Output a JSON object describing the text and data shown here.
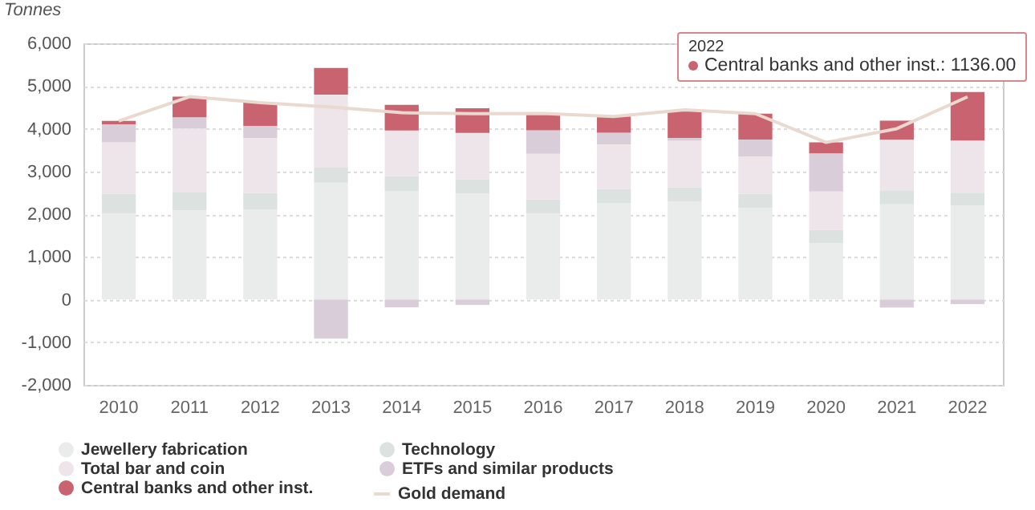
{
  "chart_data": {
    "type": "bar",
    "stacked": true,
    "ylabel": "Tonnes",
    "categories": [
      "2010",
      "2011",
      "2012",
      "2013",
      "2014",
      "2015",
      "2016",
      "2017",
      "2018",
      "2019",
      "2020",
      "2021",
      "2022"
    ],
    "series": [
      {
        "name": "Jewellery fabrication",
        "color": "#e9eceb",
        "values": [
          2017,
          2091,
          2112,
          2735,
          2544,
          2479,
          2019,
          2257,
          2290,
          2152,
          1324,
          2230,
          2195
        ]
      },
      {
        "name": "Technology",
        "color": "#dbe2df",
        "values": [
          461,
          429,
          382,
          356,
          349,
          332,
          323,
          333,
          335,
          326,
          303,
          330,
          309
        ]
      },
      {
        "name": "Total bar and coin",
        "color": "#eee5eb",
        "values": [
          1203,
          1487,
          1289,
          1706,
          1065,
          1090,
          1073,
          1045,
          1091,
          870,
          903,
          1180,
          1217
        ]
      },
      {
        "name": "ETFs and similar products",
        "color": "#d8cdd9",
        "values": [
          421,
          262,
          285,
          -916,
          -185,
          -129,
          547,
          272,
          69,
          399,
          894,
          -189,
          -110
        ]
      },
      {
        "name": "Central banks and other inst.",
        "color": "#c9636f",
        "values": [
          79,
          480,
          544,
          625,
          601,
          580,
          395,
          379,
          656,
          605,
          255,
          450,
          1136
        ]
      },
      {
        "name": "Gold demand",
        "type": "line",
        "color": "#e9d9ce",
        "values": [
          4181,
          4749,
          4612,
          4506,
          4374,
          4352,
          4357,
          4286,
          4441,
          4352,
          3679,
          4001,
          4747
        ]
      }
    ],
    "ylim": [
      -2000,
      6000
    ],
    "yticks": [
      {
        "value": -2000,
        "label": "-2,000"
      },
      {
        "value": -1000,
        "label": "-1,000"
      },
      {
        "value": 0,
        "label": "0"
      },
      {
        "value": 1000,
        "label": "1,000"
      },
      {
        "value": 2000,
        "label": "2,000"
      },
      {
        "value": 3000,
        "label": "3,000"
      },
      {
        "value": 4000,
        "label": "4,000"
      },
      {
        "value": 5000,
        "label": "5,000"
      },
      {
        "value": 6000,
        "label": "6,000"
      }
    ],
    "grid": "y",
    "legend": "bottom left",
    "annotations": [
      "2022",
      {
        "text": "Central banks and other inst.: 1136.00",
        "x": "2022",
        "y": 4857
      }
    ]
  }
}
